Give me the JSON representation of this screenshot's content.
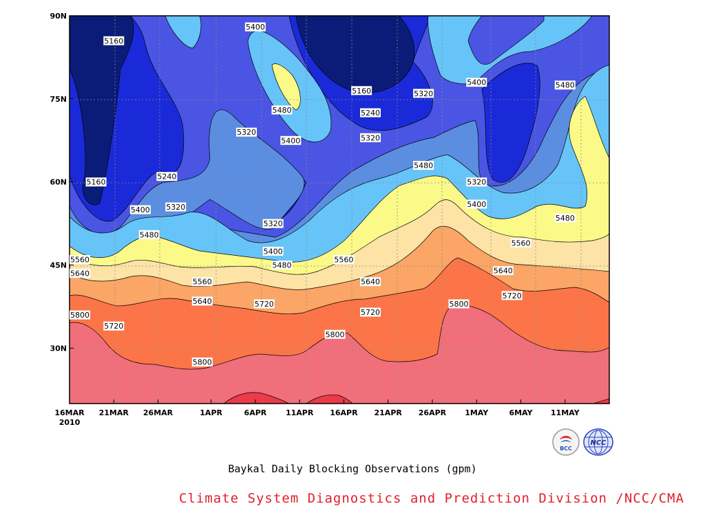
{
  "chart_data": {
    "type": "contour",
    "title": "Baykal Daily Blocking Observations (gpm)",
    "x_ticks": [
      "16MAR",
      "21MAR",
      "26MAR",
      "1APR",
      "6APR",
      "11APR",
      "16APR",
      "21APR",
      "26APR",
      "1MAY",
      "6MAY",
      "11MAY"
    ],
    "x_year_label": "2010",
    "y_ticks": [
      "30N",
      "45N",
      "60N",
      "75N",
      "90N"
    ],
    "y_range": [
      "20N",
      "90N"
    ],
    "x_range": [
      "2010-03-16",
      "2010-05-16"
    ],
    "contour_levels": [
      5160,
      5240,
      5320,
      5400,
      5480,
      5560,
      5640,
      5720,
      5800
    ],
    "fill_colors": {
      "below_5160": "#0b1c78",
      "5160_5240": "#1a2ad8",
      "5240_5320": "#4a55e4",
      "5320_5400": "#5b8ee0",
      "5400_5480": "#66c4f8",
      "5480_5560": "#fbf988",
      "5560_5640": "#fde3a6",
      "5640_5720": "#fba566",
      "5720_5800": "#fc7548",
      "5800_5880": "#f16f7a",
      "above_5880": "#ec3a48"
    },
    "contour_labels": [
      {
        "date": "2010-03-21",
        "lat": 85.5,
        "value": "5160"
      },
      {
        "date": "2010-03-19",
        "lat": 60.0,
        "value": "5160"
      },
      {
        "date": "2010-03-27",
        "lat": 61.0,
        "value": "5240"
      },
      {
        "date": "2010-03-24",
        "lat": 55.0,
        "value": "5400"
      },
      {
        "date": "2010-03-28",
        "lat": 55.5,
        "value": "5320"
      },
      {
        "date": "2010-03-25",
        "lat": 50.5,
        "value": "5480"
      },
      {
        "date": "2010-03-16",
        "lat": 46.0,
        "value": "5560"
      },
      {
        "date": "2010-03-16",
        "lat": 43.5,
        "value": "5640"
      },
      {
        "date": "2010-03-16",
        "lat": 36.0,
        "value": "5800"
      },
      {
        "date": "2010-03-21",
        "lat": 34.0,
        "value": "5720"
      },
      {
        "date": "2010-03-31",
        "lat": 42.0,
        "value": "5560"
      },
      {
        "date": "2010-03-31",
        "lat": 38.5,
        "value": "5640"
      },
      {
        "date": "2010-03-31",
        "lat": 27.5,
        "value": "5800"
      },
      {
        "date": "2010-04-05",
        "lat": 69.0,
        "value": "5320"
      },
      {
        "date": "2010-04-06",
        "lat": 88.0,
        "value": "5400"
      },
      {
        "date": "2010-04-09",
        "lat": 73.0,
        "value": "5480"
      },
      {
        "date": "2010-04-10",
        "lat": 67.5,
        "value": "5400"
      },
      {
        "date": "2010-04-07",
        "lat": 38.0,
        "value": "5720"
      },
      {
        "date": "2010-04-08",
        "lat": 52.5,
        "value": "5320"
      },
      {
        "date": "2010-04-08",
        "lat": 47.5,
        "value": "5400"
      },
      {
        "date": "2010-04-09",
        "lat": 45.0,
        "value": "5480"
      },
      {
        "date": "2010-04-16",
        "lat": 46.0,
        "value": "5560"
      },
      {
        "date": "2010-04-15",
        "lat": 32.5,
        "value": "5800"
      },
      {
        "date": "2010-04-18",
        "lat": 76.5,
        "value": "5160"
      },
      {
        "date": "2010-04-19",
        "lat": 72.5,
        "value": "5240"
      },
      {
        "date": "2010-04-19",
        "lat": 68.0,
        "value": "5320"
      },
      {
        "date": "2010-04-19",
        "lat": 42.0,
        "value": "5640"
      },
      {
        "date": "2010-04-19",
        "lat": 36.5,
        "value": "5720"
      },
      {
        "date": "2010-04-25",
        "lat": 76.0,
        "value": "5320"
      },
      {
        "date": "2010-04-25",
        "lat": 63.0,
        "value": "5480"
      },
      {
        "date": "2010-04-29",
        "lat": 38.0,
        "value": "5800"
      },
      {
        "date": "2010-05-01",
        "lat": 78.0,
        "value": "5400"
      },
      {
        "date": "2010-05-01",
        "lat": 60.0,
        "value": "5320"
      },
      {
        "date": "2010-05-01",
        "lat": 56.0,
        "value": "5400"
      },
      {
        "date": "2010-05-06",
        "lat": 49.0,
        "value": "5560"
      },
      {
        "date": "2010-05-04",
        "lat": 44.0,
        "value": "5640"
      },
      {
        "date": "2010-05-05",
        "lat": 39.5,
        "value": "5720"
      },
      {
        "date": "2010-05-11",
        "lat": 77.5,
        "value": "5480"
      },
      {
        "date": "2010-05-11",
        "lat": 53.5,
        "value": "5480"
      }
    ],
    "grid": true
  },
  "footer": {
    "credit": "Climate System Diagnostics and Prediction Division /NCC/CMA",
    "logo_left_text": "BCC",
    "logo_right_text": "NCC"
  }
}
